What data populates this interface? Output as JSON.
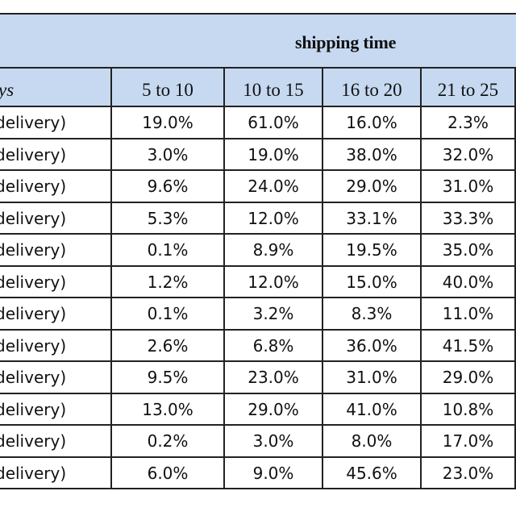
{
  "table": {
    "banner_title": "shipping time",
    "headers": [
      "ys",
      "5 to 10",
      "10 to 15",
      "16 to 20",
      "21 to 25"
    ],
    "rows": [
      {
        "label": "delivery)",
        "values": [
          "19.0%",
          "61.0%",
          "16.0%",
          "2.3%"
        ]
      },
      {
        "label": "delivery)",
        "values": [
          "3.0%",
          "19.0%",
          "38.0%",
          "32.0%"
        ]
      },
      {
        "label": "delivery)",
        "values": [
          "9.6%",
          "24.0%",
          "29.0%",
          "31.0%"
        ]
      },
      {
        "label": "delivery)",
        "values": [
          "5.3%",
          "12.0%",
          "33.1%",
          "33.3%"
        ]
      },
      {
        "label": "delivery)",
        "values": [
          "0.1%",
          "8.9%",
          "19.5%",
          "35.0%"
        ]
      },
      {
        "label": "delivery)",
        "values": [
          "1.2%",
          "12.0%",
          "15.0%",
          "40.0%"
        ]
      },
      {
        "label": "delivery)",
        "values": [
          "0.1%",
          "3.2%",
          "8.3%",
          "11.0%"
        ]
      },
      {
        "label": "delivery)",
        "values": [
          "2.6%",
          "6.8%",
          "36.0%",
          "41.5%"
        ]
      },
      {
        "label": "delivery)",
        "values": [
          "9.5%",
          "23.0%",
          "31.0%",
          "29.0%"
        ]
      },
      {
        "label": "delivery)",
        "values": [
          "13.0%",
          "29.0%",
          "41.0%",
          "10.8%"
        ]
      },
      {
        "label": "delivery)",
        "values": [
          "0.2%",
          "3.0%",
          "8.0%",
          "17.0%"
        ]
      },
      {
        "label": "delivery)",
        "values": [
          "6.0%",
          "9.0%",
          "45.6%",
          "23.0%"
        ]
      }
    ]
  }
}
